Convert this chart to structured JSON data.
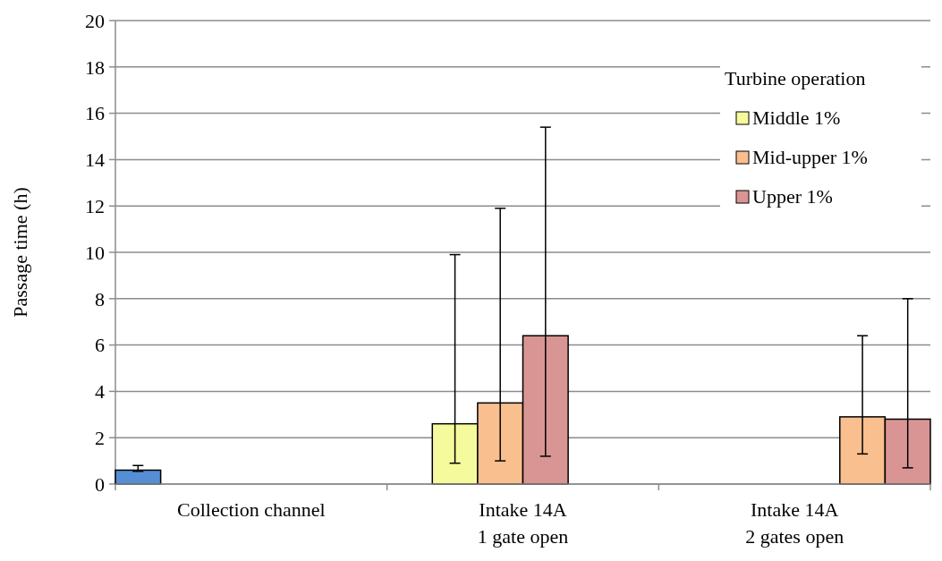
{
  "chart_data": {
    "type": "bar",
    "ylabel": "Passage time (h)",
    "legend_title": "Turbine operation",
    "legend": "top right",
    "grid": "y",
    "categories": [
      "Collection channel",
      "Intake 14A\n1 gate open",
      "Intake 14A\n2 gates open"
    ],
    "ylim": [
      0,
      20
    ],
    "yticks": [
      0,
      2,
      4,
      6,
      8,
      10,
      12,
      14,
      16,
      18,
      20
    ],
    "series": [
      {
        "color": "#558ed5",
        "values": [
          0.6,
          null,
          null
        ],
        "errors": [
          [
            0.55,
            0.8
          ],
          null,
          null
        ]
      },
      {
        "name": "Middle 1%",
        "color": "#f5fa9c",
        "values": [
          null,
          2.6,
          null
        ],
        "errors": [
          null,
          [
            0.9,
            9.9
          ],
          null
        ]
      },
      {
        "name": "Mid-upper 1%",
        "color": "#f9bf8f",
        "values": [
          null,
          3.5,
          null
        ],
        "errors": [
          null,
          [
            1.0,
            11.9
          ],
          null
        ]
      },
      {
        "name": "Upper 1%",
        "color": "#d99594",
        "values": [
          null,
          6.4,
          null
        ],
        "errors": [
          null,
          [
            1.2,
            15.4
          ],
          null
        ]
      },
      {
        "color": "#f9bf8f",
        "values": [
          null,
          null,
          2.9
        ],
        "errors": [
          null,
          null,
          [
            1.3,
            6.4
          ]
        ]
      },
      {
        "color": "#d99594",
        "values": [
          null,
          null,
          2.8
        ],
        "errors": [
          null,
          null,
          [
            0.7,
            8.0
          ]
        ]
      }
    ]
  }
}
